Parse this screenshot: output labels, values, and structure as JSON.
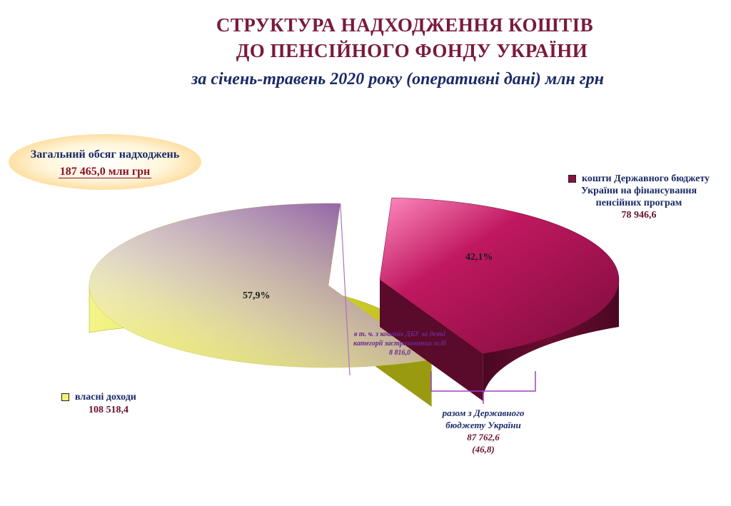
{
  "title": {
    "line1": "СТРУКТУРА  НАДХОДЖЕННЯ КОШТІВ",
    "line2": "ДО ПЕНСІЙНОГО ФОНДУ УКРАЇНИ",
    "subtitle": "за січень-травень 2020 року (оперативні дані) млн грн"
  },
  "total": {
    "label": "Загальний обсяг надходжень",
    "value": "187 465,0 млн грн"
  },
  "chart_data": {
    "type": "pie",
    "title": "СТРУКТУРА  НАДХОДЖЕННЯ КОШТІВ ДО ПЕНСІЙНОГО ФОНДУ УКРАЇНИ за січень-травень 2020 року (оперативні дані) млн грн",
    "slices": [
      {
        "label": "власні доходи",
        "value": 108518.4,
        "display_value": "108 518,4",
        "percent_label": "57,9%",
        "color": "#e8e838"
      },
      {
        "label": "кошти Державного бюджету України на фінансування пенсійних програм",
        "value": 78946.6,
        "display_value": "78 946,6",
        "percent_label": "42,1%",
        "color": "#9c1048"
      }
    ],
    "legend_colors": {
      "own": "#f2f27a",
      "budget": "#8a1040"
    },
    "annotations": {
      "inner": "в т. ч. з коштів ДБУ за деякі категорії застрахованих осіб",
      "inner_value": "8 816,0",
      "sum_label": "разом з Державного бюджету України",
      "sum_value": "87 762,6",
      "sum_percent": "(46,8)"
    },
    "legend_placement": "sides"
  }
}
